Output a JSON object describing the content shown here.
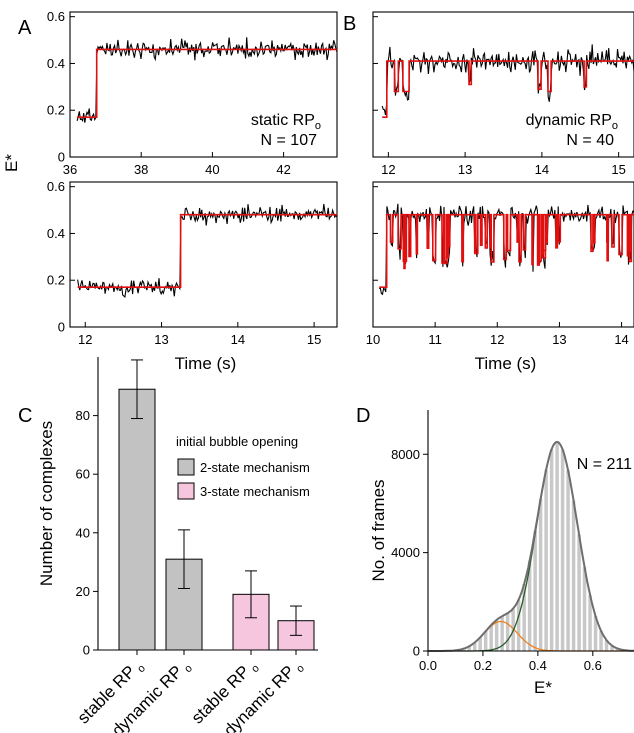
{
  "colors": {
    "fit": "#e01010",
    "trace": "#000000",
    "bar2": "#c2c2c2",
    "bar3": "#f5c6de",
    "hist": "#c8c8c8",
    "envelope": "#6e6e6e",
    "gauss1": "#f08020",
    "gauss2": "#2a5a2a"
  },
  "chart_data": [
    {
      "id": "A-top",
      "letter": "A",
      "type": "line",
      "xlim": [
        36,
        43.5
      ],
      "ylim": [
        0,
        0.62
      ],
      "xticks": [
        36,
        38,
        40,
        42
      ],
      "yticks": [
        0,
        0.2,
        0.4,
        0.6
      ],
      "ytick_labels": [
        "0",
        "0.2",
        "0.4",
        "0.6"
      ],
      "annotation": {
        "name": "static RP",
        "sub": "o",
        "n": "N = 107"
      },
      "trace": {
        "t0": 36.2,
        "t1": 43.5,
        "seed": 11,
        "noise": 0.028
      },
      "fit": [
        [
          36.2,
          0.17
        ],
        [
          36.75,
          0.17
        ],
        [
          36.75,
          0.46
        ],
        [
          43.5,
          0.46
        ]
      ]
    },
    {
      "id": "A-bottom",
      "type": "line",
      "xlim": [
        11.8,
        15.3
      ],
      "ylim": [
        0,
        0.62
      ],
      "xticks": [
        12,
        13,
        14,
        15
      ],
      "yticks": [
        0,
        0.2,
        0.4,
        0.6
      ],
      "ytick_labels": [
        "0",
        "0.2",
        "0.4",
        "0.6"
      ],
      "xlabel": "Time (s)",
      "trace": {
        "t0": 11.9,
        "t1": 15.3,
        "seed": 23,
        "noise": 0.026
      },
      "fit": [
        [
          11.9,
          0.17
        ],
        [
          13.25,
          0.17
        ],
        [
          13.25,
          0.48
        ],
        [
          15.3,
          0.48
        ]
      ]
    },
    {
      "id": "B-top",
      "letter": "B",
      "type": "line",
      "xlim": [
        11.8,
        15.2
      ],
      "ylim": [
        0,
        0.62
      ],
      "xticks": [
        12,
        13,
        14,
        15
      ],
      "yticks": [
        0,
        0.2,
        0.4,
        0.6
      ],
      "ytick_labels": [
        "",
        "",
        "",
        ""
      ],
      "annotation": {
        "name": "dynamic RP",
        "sub": "o",
        "n": "N = 40"
      },
      "trace": {
        "t0": 11.92,
        "t1": 15.2,
        "seed": 37,
        "noise": 0.035
      },
      "fit": [
        [
          11.92,
          0.17
        ],
        [
          11.98,
          0.17
        ],
        [
          11.98,
          0.41
        ],
        [
          12.08,
          0.41
        ],
        [
          12.08,
          0.28
        ],
        [
          12.13,
          0.28
        ],
        [
          12.13,
          0.41
        ],
        [
          12.19,
          0.41
        ],
        [
          12.19,
          0.28
        ],
        [
          12.27,
          0.28
        ],
        [
          12.27,
          0.41
        ],
        [
          13.05,
          0.41
        ],
        [
          13.05,
          0.31
        ],
        [
          13.08,
          0.31
        ],
        [
          13.08,
          0.41
        ],
        [
          13.95,
          0.41
        ],
        [
          13.95,
          0.29
        ],
        [
          13.99,
          0.29
        ],
        [
          13.99,
          0.41
        ],
        [
          14.08,
          0.41
        ],
        [
          14.08,
          0.28
        ],
        [
          14.12,
          0.28
        ],
        [
          14.12,
          0.41
        ],
        [
          14.55,
          0.41
        ],
        [
          14.55,
          0.3
        ],
        [
          14.58,
          0.3
        ],
        [
          14.58,
          0.41
        ],
        [
          15.2,
          0.41
        ]
      ]
    },
    {
      "id": "B-bottom",
      "type": "line",
      "xlim": [
        10,
        14.2
      ],
      "ylim": [
        0,
        0.62
      ],
      "xticks": [
        10,
        11,
        12,
        13,
        14
      ],
      "yticks": [
        0,
        0.2,
        0.4,
        0.6
      ],
      "ytick_labels": [
        "",
        "",
        "",
        ""
      ],
      "xlabel": "Time (s)",
      "trace": {
        "t0": 10.1,
        "t1": 14.2,
        "seed": 53,
        "noise": 0.03
      },
      "fit_dips": {
        "base": 0.48,
        "start": 10.1,
        "rise": 10.22,
        "low": 0.17,
        "dip": 0.25,
        "count": 42,
        "seed": 71
      }
    },
    {
      "id": "C",
      "letter": "C",
      "type": "bar",
      "ylabel": "Number of complexes",
      "ylim": [
        0,
        100
      ],
      "yticks": [
        0,
        20,
        40,
        60,
        80
      ],
      "categories": [
        "stable RP",
        "dynamic RP",
        "stable RP",
        "dynamic RP"
      ],
      "category_sub": "o",
      "values": [
        89,
        31,
        19,
        10
      ],
      "errors": [
        10,
        10,
        8,
        5
      ],
      "groups": [
        2,
        2,
        3,
        3
      ],
      "legend": {
        "title": "initial bubble opening",
        "items": [
          {
            "label": "2-state mechanism",
            "group": 2
          },
          {
            "label": "3-state mechanism",
            "group": 3
          }
        ]
      }
    },
    {
      "id": "D",
      "letter": "D",
      "type": "bar",
      "xlabel": "E*",
      "ylabel": "No. of frames",
      "xlim": [
        0,
        0.75
      ],
      "ylim": [
        0,
        9800
      ],
      "xticks": [
        0,
        0.2,
        0.4,
        0.6
      ],
      "xtick_labels": [
        "0.0",
        "0.2",
        "0.4",
        "0.6"
      ],
      "yticks": [
        0,
        4000,
        8000
      ],
      "annotation": "N = 211",
      "bin_width": 0.02,
      "components": [
        {
          "amp": 1200,
          "mu": 0.265,
          "sigma": 0.06
        },
        {
          "amp": 8500,
          "mu": 0.47,
          "sigma": 0.074
        }
      ]
    }
  ]
}
